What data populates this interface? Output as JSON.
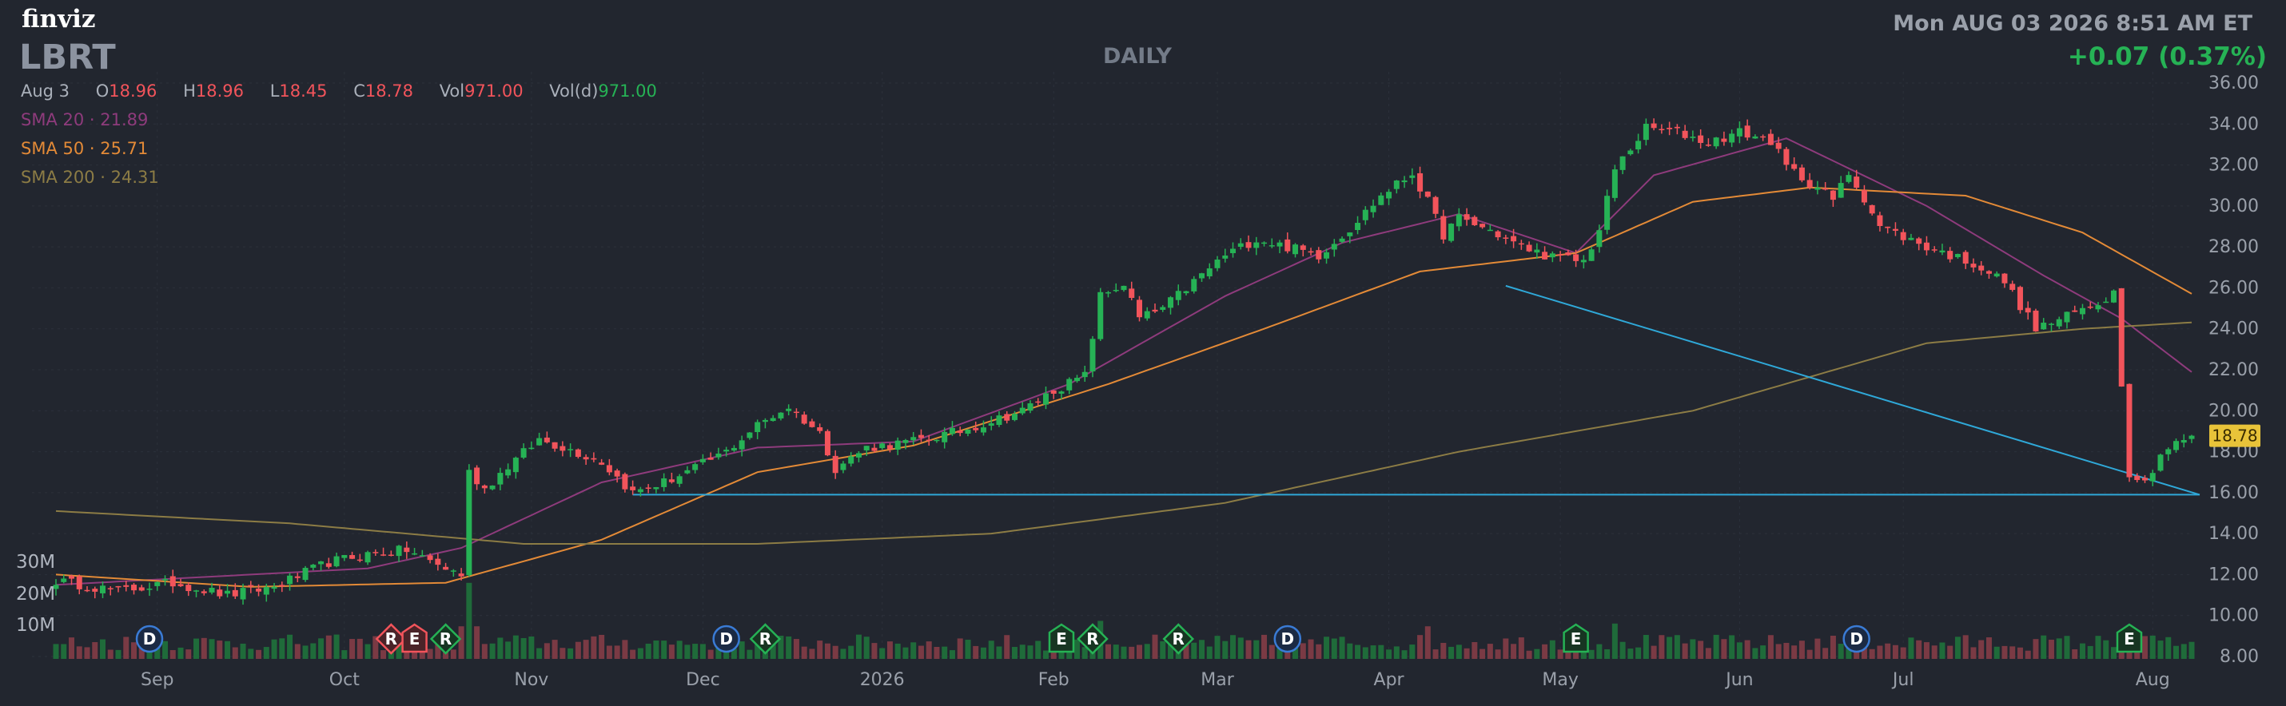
{
  "brand": "finviz",
  "ticker": "LBRT",
  "timeframe": "DAILY",
  "datetime": "Mon AUG 03 2026 8:51 AM ET",
  "change": "+0.07 (0.37%)",
  "ohlc": {
    "date": "Aug 3",
    "open_label": "O",
    "open": "18.96",
    "high_label": "H",
    "high": "18.96",
    "low_label": "L",
    "low": "18.45",
    "close_label": "C",
    "close": "18.78",
    "vol_label": "Vol",
    "vol": "971.00",
    "vold_label": "Vol(d)",
    "vold": "971.00"
  },
  "sma": [
    {
      "label": "SMA 20",
      "value": "21.89",
      "color": "#8e3b7c"
    },
    {
      "label": "SMA 50",
      "value": "25.71",
      "color": "#e38a37"
    },
    {
      "label": "SMA 200",
      "value": "24.31",
      "color": "#8c7c45"
    }
  ],
  "colors": {
    "background": "#22262f",
    "up": "#26b255",
    "down": "#f2545b",
    "trendline": "#2fa8d8",
    "price_tag": "#e8c339",
    "grid": "#2c313b",
    "axis_text": "#9aa0aa"
  },
  "chart_data": {
    "type": "candlestick",
    "y_range": [
      8,
      36
    ],
    "y_ticks": [
      "8.00",
      "10.00",
      "12.00",
      "14.00",
      "16.00",
      "18.00",
      "20.00",
      "22.00",
      "24.00",
      "26.00",
      "28.00",
      "30.00",
      "32.00",
      "34.00",
      "36.00"
    ],
    "x_labels": [
      "Sep",
      "Oct",
      "Nov",
      "Dec",
      "2026",
      "Feb",
      "Mar",
      "Apr",
      "May",
      "Jun",
      "Jul",
      "Aug"
    ],
    "volume_ticks": [
      "30M",
      "20M",
      "10M"
    ],
    "last_price": "18.78",
    "price_path": [
      [
        0,
        11.7
      ],
      [
        8,
        11.2
      ],
      [
        15,
        11.6
      ],
      [
        22,
        11.0
      ],
      [
        28,
        11.4
      ],
      [
        35,
        12.6
      ],
      [
        40,
        13.0
      ],
      [
        45,
        13.2
      ],
      [
        50,
        12.3
      ],
      [
        52,
        12.0
      ],
      [
        53,
        17.0
      ],
      [
        55,
        16.2
      ],
      [
        58,
        17.3
      ],
      [
        62,
        18.6
      ],
      [
        66,
        18.1
      ],
      [
        70,
        17.5
      ],
      [
        74,
        16.0
      ],
      [
        78,
        16.5
      ],
      [
        82,
        17.2
      ],
      [
        86,
        18.0
      ],
      [
        90,
        19.3
      ],
      [
        94,
        20.2
      ],
      [
        98,
        18.9
      ],
      [
        100,
        17.2
      ],
      [
        104,
        18.2
      ],
      [
        110,
        18.5
      ],
      [
        116,
        19.0
      ],
      [
        120,
        19.5
      ],
      [
        124,
        20.0
      ],
      [
        128,
        21.0
      ],
      [
        132,
        21.7
      ],
      [
        134,
        25.6
      ],
      [
        137,
        26.2
      ],
      [
        139,
        24.5
      ],
      [
        142,
        25.0
      ],
      [
        146,
        26.3
      ],
      [
        150,
        27.6
      ],
      [
        154,
        28.4
      ],
      [
        158,
        28.0
      ],
      [
        162,
        27.6
      ],
      [
        166,
        28.9
      ],
      [
        170,
        30.5
      ],
      [
        174,
        31.6
      ],
      [
        176,
        30.2
      ],
      [
        178,
        28.6
      ],
      [
        180,
        29.4
      ],
      [
        184,
        28.8
      ],
      [
        188,
        28.0
      ],
      [
        192,
        27.5
      ],
      [
        196,
        27.3
      ],
      [
        198,
        28.8
      ],
      [
        200,
        31.8
      ],
      [
        204,
        33.8
      ],
      [
        208,
        33.6
      ],
      [
        212,
        33.1
      ],
      [
        216,
        33.6
      ],
      [
        220,
        33.2
      ],
      [
        222,
        31.9
      ],
      [
        226,
        30.9
      ],
      [
        228,
        30.3
      ],
      [
        230,
        31.6
      ],
      [
        232,
        30.4
      ],
      [
        234,
        29.0
      ],
      [
        240,
        28.0
      ],
      [
        246,
        27.2
      ],
      [
        250,
        26.3
      ],
      [
        254,
        24.0
      ],
      [
        258,
        24.6
      ],
      [
        262,
        25.3
      ],
      [
        264,
        25.8
      ],
      [
        266,
        17.0
      ],
      [
        268,
        16.5
      ],
      [
        270,
        17.9
      ],
      [
        272,
        18.4
      ],
      [
        274,
        18.78
      ]
    ],
    "horizontal_line": 15.9,
    "trendline": [
      [
        186,
        26.1
      ],
      [
        274,
        15.9
      ]
    ],
    "sma_path": {
      "SMA 20": [
        [
          0,
          11.5
        ],
        [
          40,
          12.3
        ],
        [
          52,
          13.3
        ],
        [
          70,
          16.5
        ],
        [
          90,
          18.2
        ],
        [
          110,
          18.5
        ],
        [
          130,
          21.3
        ],
        [
          150,
          25.6
        ],
        [
          165,
          28.2
        ],
        [
          180,
          29.6
        ],
        [
          195,
          27.7
        ],
        [
          205,
          31.5
        ],
        [
          222,
          33.3
        ],
        [
          240,
          30.0
        ],
        [
          255,
          26.6
        ],
        [
          265,
          24.5
        ],
        [
          274,
          21.89
        ]
      ],
      "SMA 50": [
        [
          0,
          12.0
        ],
        [
          25,
          11.4
        ],
        [
          50,
          11.6
        ],
        [
          70,
          13.7
        ],
        [
          90,
          17.0
        ],
        [
          110,
          18.3
        ],
        [
          135,
          21.3
        ],
        [
          155,
          24.0
        ],
        [
          175,
          26.8
        ],
        [
          195,
          27.7
        ],
        [
          210,
          30.2
        ],
        [
          225,
          30.9
        ],
        [
          245,
          30.5
        ],
        [
          260,
          28.7
        ],
        [
          274,
          25.71
        ]
      ],
      "SMA 200": [
        [
          0,
          15.1
        ],
        [
          30,
          14.5
        ],
        [
          60,
          13.5
        ],
        [
          90,
          13.5
        ],
        [
          120,
          14.0
        ],
        [
          150,
          15.5
        ],
        [
          180,
          18.0
        ],
        [
          210,
          20.0
        ],
        [
          240,
          23.3
        ],
        [
          260,
          24.0
        ],
        [
          274,
          24.31
        ]
      ]
    },
    "markers": [
      {
        "label": "D",
        "shape": "circle",
        "day": 12
      },
      {
        "label": "R",
        "shape": "diamond",
        "kind": "red",
        "day": 43
      },
      {
        "label": "E",
        "shape": "pentagon",
        "kind": "red",
        "day": 46
      },
      {
        "label": "R",
        "shape": "diamond",
        "kind": "green",
        "day": 50
      },
      {
        "label": "D",
        "shape": "circle",
        "day": 86
      },
      {
        "label": "R",
        "shape": "diamond",
        "kind": "green",
        "day": 91
      },
      {
        "label": "E",
        "shape": "pentagon",
        "kind": "green",
        "day": 129
      },
      {
        "label": "R",
        "shape": "diamond",
        "kind": "green",
        "day": 133
      },
      {
        "label": "R",
        "shape": "diamond",
        "kind": "green",
        "day": 144
      },
      {
        "label": "D",
        "shape": "circle",
        "day": 158
      },
      {
        "label": "E",
        "shape": "pentagon",
        "kind": "green",
        "day": 195
      },
      {
        "label": "D",
        "shape": "circle",
        "day": 231
      },
      {
        "label": "E",
        "shape": "pentagon",
        "kind": "green",
        "day": 266
      }
    ]
  }
}
